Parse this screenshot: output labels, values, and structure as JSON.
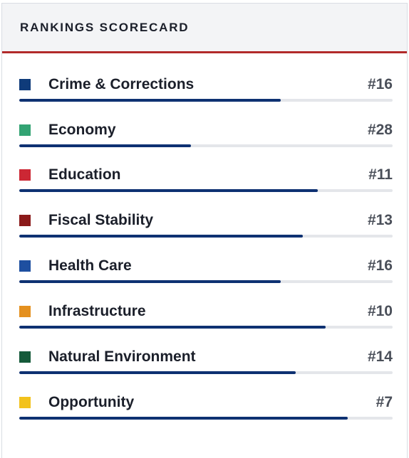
{
  "header": {
    "title": "RANKINGS SCORECARD"
  },
  "bar_color": "#0e3172",
  "items": [
    {
      "label": "Crime & Corrections",
      "rank": "#16",
      "color": "#0f3b7a",
      "fill": 0.7
    },
    {
      "label": "Economy",
      "rank": "#28",
      "color": "#33a373",
      "fill": 0.46
    },
    {
      "label": "Education",
      "rank": "#11",
      "color": "#cc2734",
      "fill": 0.8
    },
    {
      "label": "Fiscal Stability",
      "rank": "#13",
      "color": "#8b1a1a",
      "fill": 0.76
    },
    {
      "label": "Health Care",
      "rank": "#16",
      "color": "#1e4fa0",
      "fill": 0.7
    },
    {
      "label": "Infrastructure",
      "rank": "#10",
      "color": "#e4901f",
      "fill": 0.82
    },
    {
      "label": "Natural Environment",
      "rank": "#14",
      "color": "#155a3a",
      "fill": 0.74
    },
    {
      "label": "Opportunity",
      "rank": "#7",
      "color": "#f2c21c",
      "fill": 0.88
    }
  ]
}
